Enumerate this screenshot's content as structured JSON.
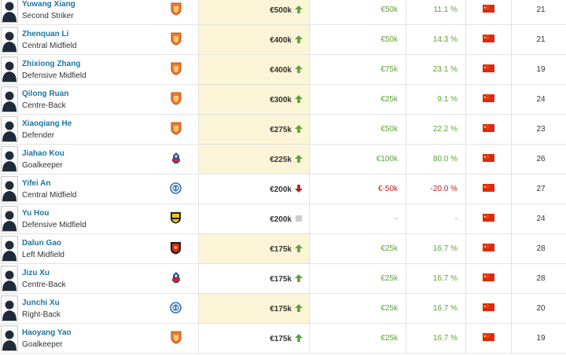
{
  "rows": [
    {
      "name": "Yuwang Xiang",
      "position": "Second Striker",
      "club_icon": "orange-shield-crest-icon",
      "value": "€500k",
      "trend": "up",
      "highlight": true,
      "diff": "€50k",
      "diff_sign": "pos",
      "pct": "11.1 %",
      "pct_sign": "pos",
      "age": "21"
    },
    {
      "name": "Zhenquan Li",
      "position": "Central Midfield",
      "club_icon": "orange-shield-crest-icon",
      "value": "€400k",
      "trend": "up",
      "highlight": true,
      "diff": "€50k",
      "diff_sign": "pos",
      "pct": "14.3 %",
      "pct_sign": "pos",
      "age": "21"
    },
    {
      "name": "Zhixiong Zhang",
      "position": "Defensive Midfield",
      "club_icon": "orange-shield-crest-icon",
      "value": "€400k",
      "trend": "up",
      "highlight": true,
      "diff": "€75k",
      "diff_sign": "pos",
      "pct": "23.1 %",
      "pct_sign": "pos",
      "age": "19"
    },
    {
      "name": "Qilong Ruan",
      "position": "Centre-Back",
      "club_icon": "orange-shield-crest-icon",
      "value": "€300k",
      "trend": "up",
      "highlight": true,
      "diff": "€25k",
      "diff_sign": "pos",
      "pct": "9.1 %",
      "pct_sign": "pos",
      "age": "24"
    },
    {
      "name": "Xiaoqiang He",
      "position": "Defender",
      "club_icon": "orange-shield-crest-icon",
      "value": "€275k",
      "trend": "up",
      "highlight": true,
      "diff": "€50k",
      "diff_sign": "pos",
      "pct": "22.2 %",
      "pct_sign": "pos",
      "age": "23"
    },
    {
      "name": "Jiahao Kou",
      "position": "Goalkeeper",
      "club_icon": "blue-red-crest-icon",
      "value": "€225k",
      "trend": "up",
      "highlight": true,
      "diff": "€100k",
      "diff_sign": "pos",
      "pct": "80.0 %",
      "pct_sign": "pos",
      "age": "26"
    },
    {
      "name": "Yifei An",
      "position": "Central Midfield",
      "club_icon": "blue-round-crest-icon",
      "value": "€200k",
      "trend": "down",
      "highlight": false,
      "diff": "€-50k",
      "diff_sign": "neg",
      "pct": "-20.0 %",
      "pct_sign": "neg",
      "age": "27"
    },
    {
      "name": "Yu Hou",
      "position": "Defensive Midfield",
      "club_icon": "yellow-black-crest-icon",
      "value": "€200k",
      "trend": "none",
      "highlight": false,
      "diff": "-",
      "diff_sign": "neu",
      "pct": "-",
      "pct_sign": "neu",
      "age": "24"
    },
    {
      "name": "Dalun Gao",
      "position": "Left Midfield",
      "club_icon": "red-black-crest-icon",
      "value": "€175k",
      "trend": "up",
      "highlight": true,
      "diff": "€25k",
      "diff_sign": "pos",
      "pct": "16.7 %",
      "pct_sign": "pos",
      "age": "28"
    },
    {
      "name": "Jizu Xu",
      "position": "Centre-Back",
      "club_icon": "blue-red-crest-icon",
      "value": "€175k",
      "trend": "up",
      "highlight": false,
      "diff": "€25k",
      "diff_sign": "pos",
      "pct": "16.7 %",
      "pct_sign": "pos",
      "age": "28"
    },
    {
      "name": "Junchi Xu",
      "position": "Right-Back",
      "club_icon": "blue-round-crest-icon",
      "value": "€175k",
      "trend": "up",
      "highlight": true,
      "diff": "€25k",
      "diff_sign": "pos",
      "pct": "16.7 %",
      "pct_sign": "pos",
      "age": "20"
    },
    {
      "name": "Haoyang Yao",
      "position": "Goalkeeper",
      "club_icon": "orange-shield-crest-icon",
      "value": "€175k",
      "trend": "up",
      "highlight": false,
      "diff": "€25k",
      "diff_sign": "pos",
      "pct": "16.7 %",
      "pct_sign": "pos",
      "age": "19"
    }
  ],
  "nationality_icon": "china-flag-icon",
  "colors": {
    "name_link": "#1d75a3",
    "positive": "#5fa238",
    "negative": "#b91e1e",
    "highlight_bg": "#fcf4d7",
    "flag_red": "#de2910",
    "flag_star": "#ffde00"
  }
}
